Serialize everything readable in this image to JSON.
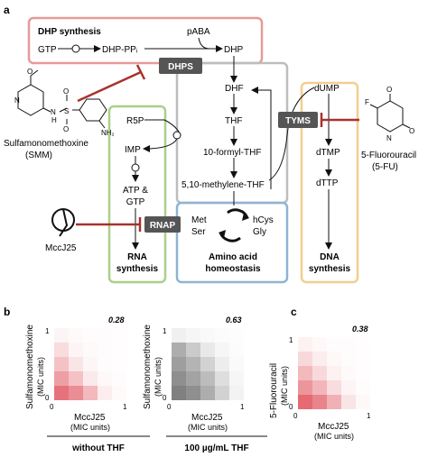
{
  "panel_labels": {
    "a": "a",
    "b": "b",
    "c": "c"
  },
  "dhp": {
    "title": "DHP synthesis",
    "gtp": "GTP",
    "dhp_ppi": "DHP-PPᵢ",
    "paba": "pABA",
    "dhp": "DHP",
    "enzyme": "DHPS"
  },
  "folate": {
    "dhf": "DHF",
    "thf": "THF",
    "formyl_thf": "10-formyl-THF",
    "methylene_thf": "5,10-methylene-THF"
  },
  "rna": {
    "r5p": "R5P",
    "imp": "IMP",
    "atp_gtp_1": "ATP &",
    "atp_gtp_2": "GTP",
    "enzyme": "RNAP",
    "title_1": "RNA",
    "title_2": "synthesis"
  },
  "amino": {
    "met": "Met",
    "ser": "Ser",
    "hcys": "hCys",
    "gly": "Gly",
    "title_1": "Amino acid",
    "title_2": "homeostasis"
  },
  "dna": {
    "dump": "dUMP",
    "enzyme": "TYMS",
    "dtmp": "dTMP",
    "dttp": "dTTP",
    "title_1": "DNA",
    "title_2": "synthesis"
  },
  "drugs": {
    "smm_1": "Sulfamonomethoxine",
    "smm_2": "(SMM)",
    "fu_1": "5-Fluorouracil",
    "fu_2": "(5-FU)",
    "mccj25": "MccJ25",
    "nh2": "NH₂",
    "o_label": "O",
    "n_label": "N",
    "h_label": "H",
    "s_label": "S",
    "f_label": "F"
  },
  "heatmaps": [
    {
      "score": "0.28",
      "ylabel_1": "Sulfamonomethoxine",
      "ylabel_2": "(MIC units)",
      "xlabel_1": "MccJ25",
      "xlabel_2": "(MIC units)",
      "tick_0": "0",
      "tick_1": "1",
      "ytick_0": "0",
      "ytick_1": "1",
      "color": "#e0505a"
    },
    {
      "score": "0.63",
      "ylabel_1": "Sulfamonomethoxine",
      "ylabel_2": "(MIC units)",
      "xlabel_1": "MccJ25",
      "xlabel_2": "(MIC units)",
      "tick_0": "0",
      "tick_1": "1",
      "ytick_0": "0",
      "ytick_1": "1",
      "color": "#6a6a6a"
    },
    {
      "score": "0.38",
      "ylabel_1": "5-Fluorouracil",
      "ylabel_2": "(MIC units)",
      "xlabel_1": "MccJ25",
      "xlabel_2": "(MIC units)",
      "tick_0": "0",
      "tick_1": "1",
      "ytick_0": "0",
      "ytick_1": "1",
      "color": "#e0505a"
    }
  ],
  "conditions": {
    "without": "without THF",
    "with": "100 µg/mL THF"
  },
  "colors": {
    "dhp_box": "#e79a98",
    "folate_box": "#bdbdbd",
    "rna_box": "#a9d08a",
    "amino_box": "#8fb3d6",
    "dna_box": "#f1cf8d",
    "enzyme_fill": "#555555",
    "inhibitor": "#a8322c"
  },
  "heat_values": [
    [
      [
        0.06,
        0.03,
        0.02,
        0.02,
        0.01
      ],
      [
        0.2,
        0.06,
        0.03,
        0.02,
        0.01
      ],
      [
        0.35,
        0.15,
        0.05,
        0.02,
        0.01
      ],
      [
        0.55,
        0.35,
        0.12,
        0.04,
        0.02
      ],
      [
        0.8,
        0.65,
        0.4,
        0.1,
        0.03
      ]
    ],
    [
      [
        0.1,
        0.06,
        0.04,
        0.02,
        0.01
      ],
      [
        0.55,
        0.35,
        0.15,
        0.06,
        0.02
      ],
      [
        0.65,
        0.5,
        0.3,
        0.12,
        0.03
      ],
      [
        0.75,
        0.62,
        0.45,
        0.22,
        0.06
      ],
      [
        0.85,
        0.75,
        0.55,
        0.3,
        0.08
      ]
    ],
    [
      [
        0.08,
        0.04,
        0.02,
        0.02,
        0.01
      ],
      [
        0.22,
        0.1,
        0.04,
        0.02,
        0.01
      ],
      [
        0.4,
        0.22,
        0.08,
        0.03,
        0.01
      ],
      [
        0.6,
        0.42,
        0.2,
        0.06,
        0.02
      ],
      [
        0.85,
        0.7,
        0.45,
        0.15,
        0.04
      ]
    ]
  ]
}
